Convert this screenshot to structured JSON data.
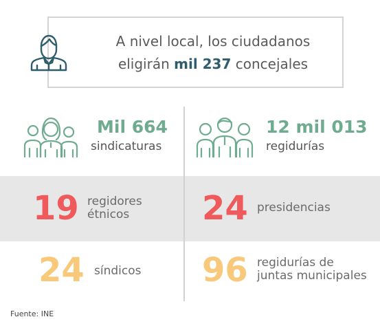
{
  "header": {
    "line1": "A nivel local, los ciudadanos",
    "line2_pre": "eligirán ",
    "line2_bold": "mil 237",
    "line2_post": " concejales",
    "icon": "person-icon"
  },
  "top_stats": [
    {
      "number": "Mil 664",
      "label": "sindicaturas",
      "icon": "family-group-icon"
    },
    {
      "number": "12 mil 013",
      "label": "regidurías",
      "icon": "people-group-icon"
    }
  ],
  "middle_stats": [
    {
      "number": "19",
      "label_line1": "regidores",
      "label_line2": "étnicos"
    },
    {
      "number": "24",
      "label": "presidencias"
    }
  ],
  "bottom_stats": [
    {
      "number": "24",
      "label": "síndicos"
    },
    {
      "number": "96",
      "label_line1": "regidurías de",
      "label_line2": "juntas municipales"
    }
  ],
  "source": "Fuente: INE",
  "colors": {
    "teal": "#6fab8f",
    "red": "#ef5a5d",
    "yellow": "#f8c97a",
    "navy": "#2f5d6b",
    "gray_band": "#e7e7e7"
  }
}
